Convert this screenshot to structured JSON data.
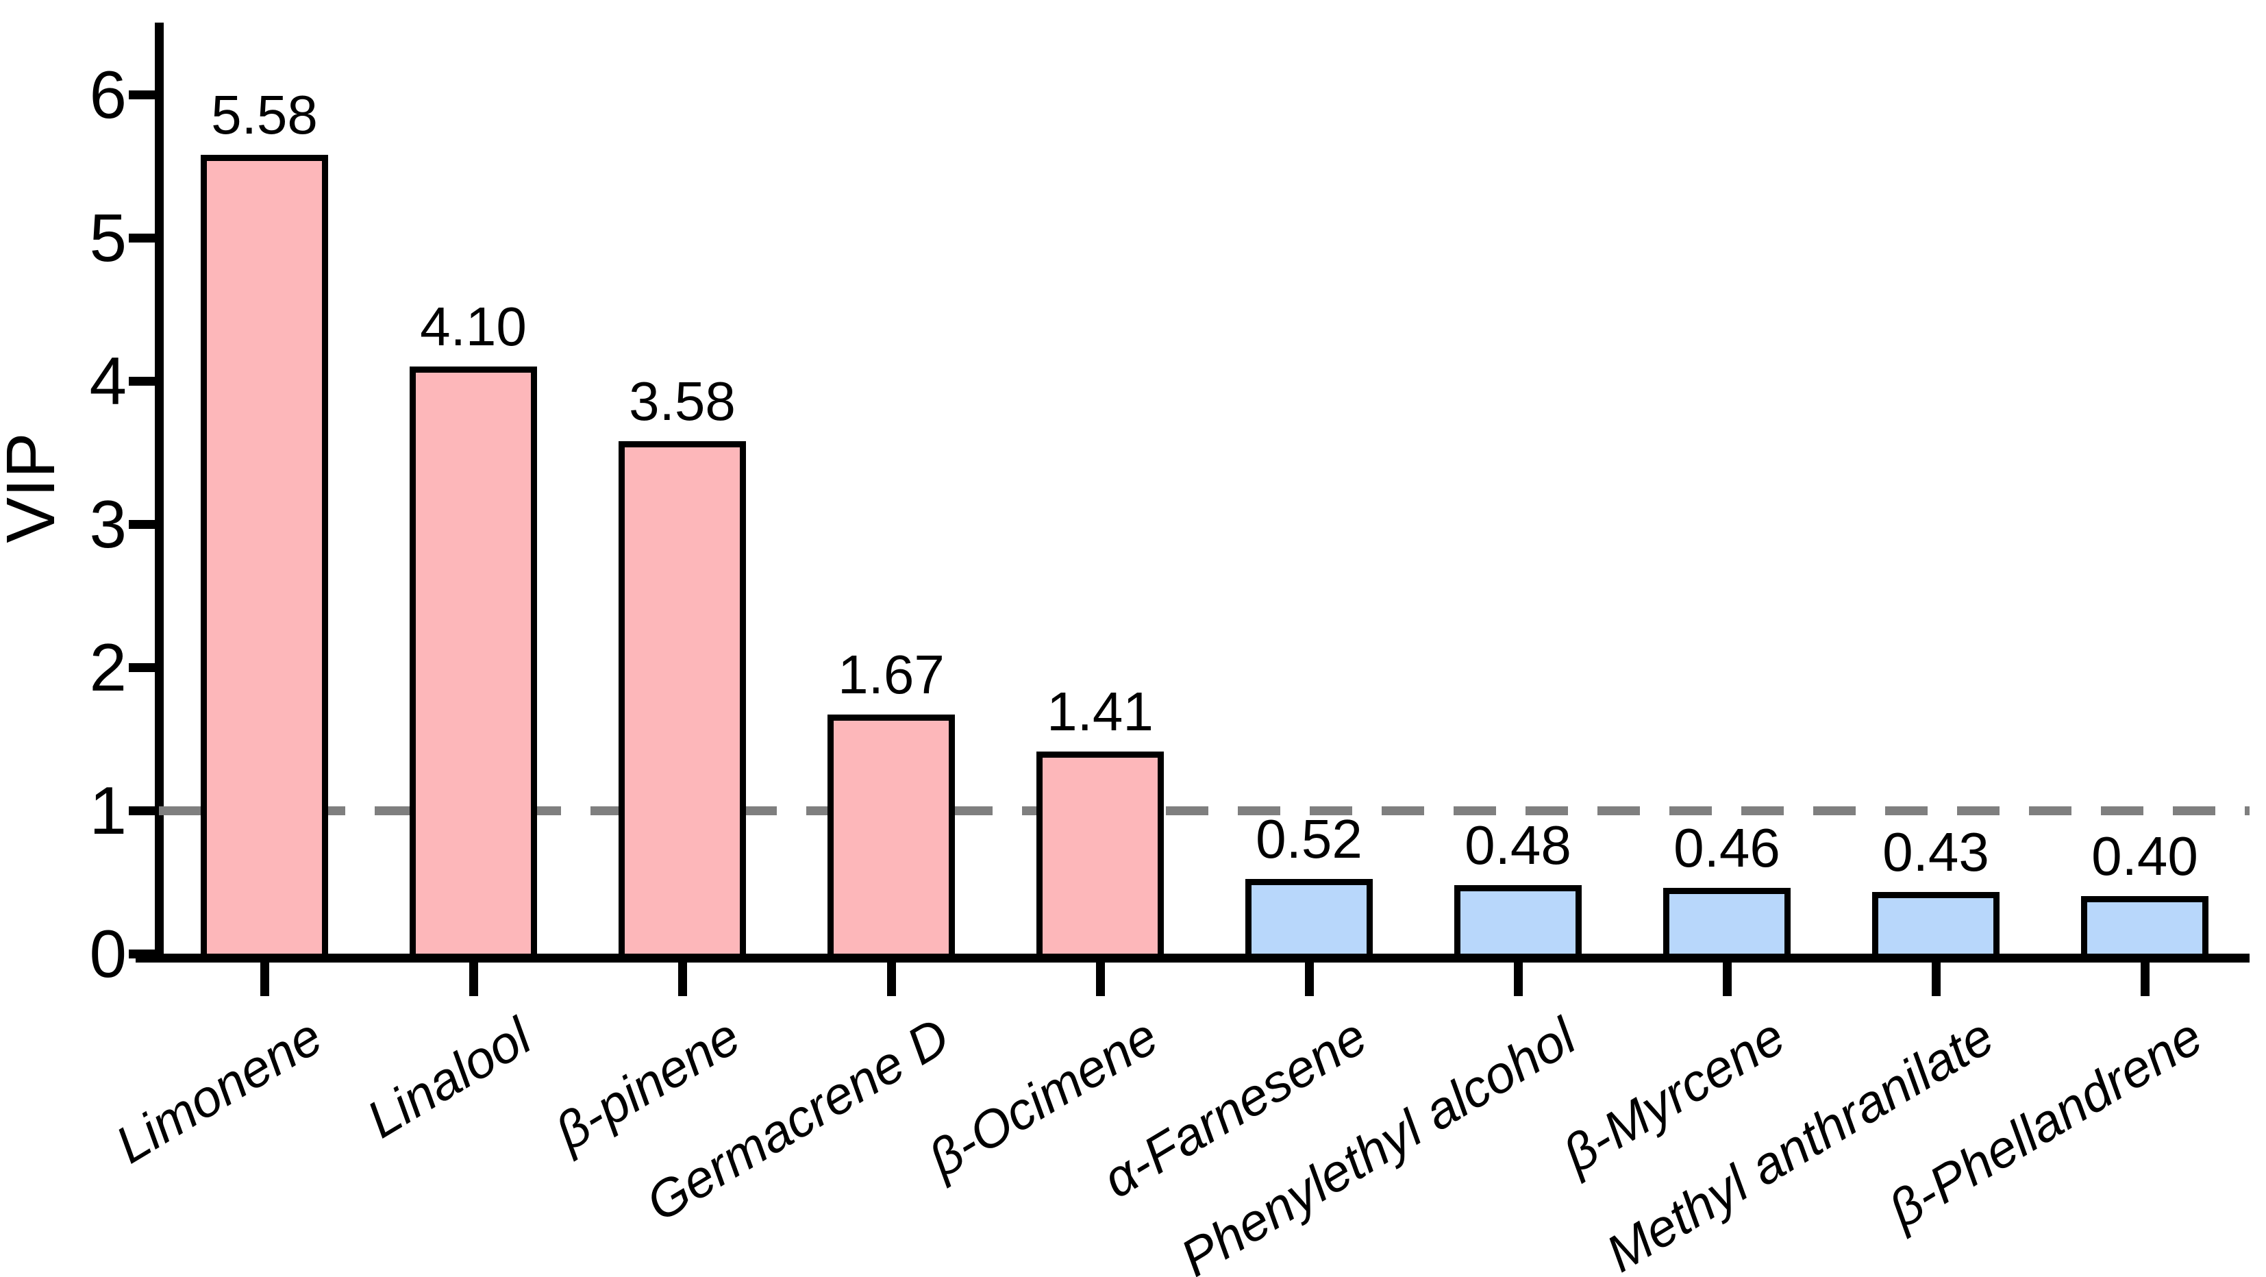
{
  "chart_data": {
    "type": "bar",
    "title": "",
    "ylabel": "VIP",
    "xlabel": "",
    "ylim": [
      0,
      6.5
    ],
    "yticks": [
      "0",
      "1",
      "2",
      "3",
      "4",
      "5",
      "6"
    ],
    "grid": false,
    "legend": "none",
    "categories": [
      "Limonene",
      "Linalool",
      "β-pinene",
      "Germacrene D",
      "β-Ocimene",
      "α-Farnesene",
      "Phenylethyl alcohol",
      "β-Myrcene",
      "Methyl anthranilate",
      "β-Phellandrene"
    ],
    "values": [
      5.58,
      4.1,
      3.58,
      1.67,
      1.41,
      0.52,
      0.48,
      0.46,
      0.43,
      0.4
    ],
    "value_labels": [
      "5.58",
      "4.10",
      "3.58",
      "1.67",
      "1.41",
      "0.52",
      "0.48",
      "0.46",
      "0.43",
      "0.40"
    ],
    "threshold_line": {
      "y": 1,
      "style": "dashed",
      "color": "#7F7F7F"
    },
    "colors": {
      "bar_above_threshold": "#FDB7BA",
      "bar_below_threshold": "#B8D7FB",
      "bar_outline": "#000000",
      "axis": "#000000",
      "text": "#000000"
    }
  }
}
